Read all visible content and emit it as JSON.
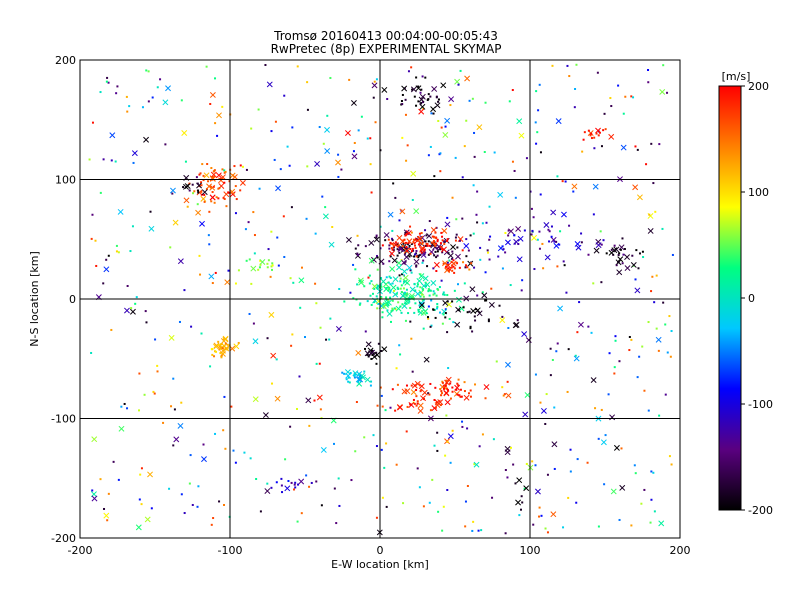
{
  "chart_data": {
    "type": "scatter",
    "title": "Tromsø 20160413 00:04:00-00:05:43",
    "subtitle": "RwPretec (8p) EXPERIMENTAL SKYMAP",
    "xlabel": "E-W location [km]",
    "ylabel": "N-S location [km]",
    "xlim": [
      -200,
      200
    ],
    "ylim": [
      -200,
      200
    ],
    "xticks": [
      -200,
      -100,
      0,
      100,
      200
    ],
    "yticks": [
      -200,
      -100,
      0,
      100,
      200
    ],
    "grid": true,
    "colorbar": {
      "label": "[m/s]",
      "min": -200,
      "max": 200,
      "ticks": [
        200,
        100,
        0,
        -100,
        -200
      ],
      "colors": [
        "#000000",
        "#5a0080",
        "#0000ff",
        "#00c8ff",
        "#00ff80",
        "#ffff00",
        "#ff8000",
        "#ff0000"
      ]
    },
    "markers": [
      "dot",
      "x"
    ],
    "clusters": [
      {
        "x": -110,
        "y": 95,
        "sx": 12,
        "sy": 12,
        "v": 170,
        "n": 70
      },
      {
        "x": -125,
        "y": 95,
        "sx": 8,
        "sy": 6,
        "v": -180,
        "n": 12
      },
      {
        "x": -105,
        "y": -40,
        "sx": 5,
        "sy": 6,
        "v": 110,
        "n": 40
      },
      {
        "x": -75,
        "y": 28,
        "sx": 10,
        "sy": 5,
        "v": 60,
        "n": 15
      },
      {
        "x": 25,
        "y": 40,
        "sx": 25,
        "sy": 10,
        "v": -170,
        "n": 120
      },
      {
        "x": 25,
        "y": 48,
        "sx": 18,
        "sy": 8,
        "v": 190,
        "n": 90
      },
      {
        "x": 50,
        "y": 28,
        "sx": 8,
        "sy": 4,
        "v": 180,
        "n": 30
      },
      {
        "x": 15,
        "y": 5,
        "sx": 22,
        "sy": 15,
        "v": 20,
        "n": 200
      },
      {
        "x": 45,
        "y": -75,
        "sx": 25,
        "sy": 7,
        "v": 180,
        "n": 70
      },
      {
        "x": 20,
        "y": -88,
        "sx": 15,
        "sy": 4,
        "v": 190,
        "n": 25
      },
      {
        "x": -15,
        "y": -65,
        "sx": 8,
        "sy": 5,
        "v": -20,
        "n": 30
      },
      {
        "x": -5,
        "y": -45,
        "sx": 5,
        "sy": 5,
        "v": -190,
        "n": 20
      },
      {
        "x": -60,
        "y": -155,
        "sx": 8,
        "sy": 6,
        "v": -110,
        "n": 15
      },
      {
        "x": 30,
        "y": 170,
        "sx": 18,
        "sy": 10,
        "v": -190,
        "n": 40
      },
      {
        "x": 160,
        "y": 35,
        "sx": 10,
        "sy": 10,
        "v": -190,
        "n": 30
      },
      {
        "x": 140,
        "y": 140,
        "sx": 10,
        "sy": 5,
        "v": 180,
        "n": 15
      },
      {
        "x": 100,
        "y": 50,
        "sx": 35,
        "sy": 20,
        "v": -120,
        "n": 60
      },
      {
        "x": 60,
        "y": -10,
        "sx": 25,
        "sy": 12,
        "v": -200,
        "n": 40
      },
      {
        "x": 90,
        "y": -160,
        "sx": 8,
        "sy": 25,
        "v": -180,
        "n": 15
      }
    ],
    "background_points": 650
  }
}
